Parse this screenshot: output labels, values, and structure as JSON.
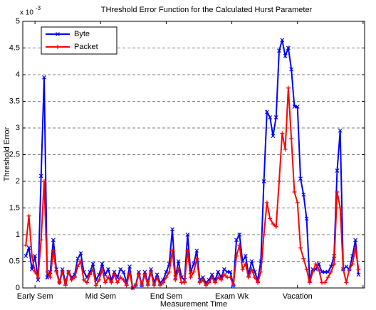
{
  "chart_data": {
    "type": "line",
    "title": "THreshold Error Function for the Calculated Hurst Parameter",
    "x_label": "Measurement Time",
    "y_label": "Threshold Error",
    "y_scale_base": "x 10",
    "y_scale_exponent": "-3",
    "x": [
      1,
      2,
      3,
      4,
      5,
      6,
      7,
      8,
      9,
      10,
      11,
      12,
      13,
      14,
      15,
      16,
      17,
      18,
      19,
      20,
      21,
      22,
      23,
      24,
      25,
      26,
      27,
      28,
      29,
      30,
      31,
      32,
      33,
      34,
      35,
      36,
      37,
      38,
      39,
      40,
      41,
      42,
      43,
      44,
      45,
      46,
      47,
      48,
      49,
      50,
      51,
      52,
      53,
      54,
      55,
      56,
      57,
      58,
      59,
      60,
      61,
      62,
      63,
      64,
      65,
      66,
      67,
      68,
      69,
      70,
      71,
      72,
      73,
      74,
      75,
      76,
      77,
      78,
      79,
      80,
      81,
      82,
      83,
      84,
      85,
      86,
      87,
      88,
      89,
      90,
      91,
      92,
      93,
      94,
      95,
      96,
      97,
      98,
      99,
      100,
      101,
      102,
      103,
      104,
      105,
      106,
      107,
      108,
      109,
      110
    ],
    "series": [
      {
        "name": "Byte",
        "color": "#0000ff",
        "marker": "x",
        "values": [
          0.6,
          0.75,
          0.35,
          0.6,
          0.15,
          2.1,
          3.95,
          0.2,
          0.3,
          0.9,
          0.35,
          0.1,
          0.35,
          0.1,
          0.3,
          0.2,
          0.25,
          0.55,
          0.65,
          0.3,
          0.2,
          0.3,
          0.45,
          0.15,
          0.25,
          0.45,
          0.25,
          0.35,
          0.15,
          0.3,
          0.2,
          0.35,
          0.3,
          0.1,
          0.4,
          0,
          0.05,
          0.3,
          0.05,
          0.3,
          0.1,
          0.35,
          0.1,
          0.25,
          0.1,
          0.15,
          0.3,
          0.45,
          1.1,
          0.2,
          0.5,
          0.2,
          0.15,
          1,
          0.3,
          0.45,
          0.7,
          0.15,
          0.2,
          0.1,
          0.15,
          0.25,
          0.15,
          0.3,
          0.2,
          0.35,
          0.3,
          0.3,
          0.05,
          0.9,
          1,
          0.5,
          0.6,
          0.25,
          0.5,
          0.3,
          0.15,
          0.5,
          2,
          3.3,
          3.2,
          2.85,
          3.2,
          4.45,
          4.65,
          4.35,
          4.5,
          4.1,
          3.4,
          3.4,
          2.05,
          1.75,
          1.3,
          0.15,
          0.35,
          0.35,
          0.45,
          0.3,
          0.3,
          0.3,
          0.4,
          0.6,
          2.2,
          2.95,
          0.35,
          0.4,
          0.35,
          0.6,
          0.9,
          0.25
        ]
      },
      {
        "name": "Packet",
        "color": "#ff0000",
        "marker": "+",
        "values": [
          0.8,
          1.35,
          0.6,
          0.3,
          0.2,
          0.9,
          2,
          0.3,
          0.2,
          0.7,
          0.3,
          0.1,
          0.3,
          0.05,
          0.3,
          0.15,
          0.2,
          0.4,
          0.5,
          0.15,
          0.1,
          0.25,
          0.35,
          0.05,
          0.15,
          0.35,
          0.1,
          0.2,
          0.1,
          0.25,
          0.1,
          0.2,
          0.15,
          0.05,
          0.3,
          0,
          0.05,
          0.25,
          0.05,
          0.25,
          0.05,
          0.3,
          0.05,
          0.2,
          0.05,
          0.1,
          0.2,
          0.3,
          0.7,
          0.15,
          0.35,
          0.1,
          0.1,
          0.7,
          0.2,
          0.3,
          0.55,
          0.1,
          0.15,
          0.05,
          0.1,
          0.2,
          0.1,
          0.2,
          0.15,
          0.25,
          0.2,
          0.2,
          0.05,
          0.6,
          0.8,
          0.35,
          0.45,
          0.2,
          0.35,
          0.2,
          0.1,
          0.3,
          1,
          1.6,
          1.3,
          1.2,
          1.15,
          2,
          2.9,
          2.6,
          3.75,
          2.8,
          1.8,
          1.6,
          0.75,
          0.55,
          0.35,
          0.1,
          0.3,
          0.45,
          0.35,
          0.1,
          0.1,
          0.2,
          0.3,
          0.45,
          1.8,
          1.5,
          0.35,
          0.1,
          0.35,
          0.45,
          0.75,
          0.35
        ]
      }
    ],
    "xlim": [
      0,
      112
    ],
    "xticks": [
      {
        "value": 4,
        "label": "Early Sem"
      },
      {
        "value": 25.5,
        "label": "Mid Sem"
      },
      {
        "value": 47,
        "label": "End Sem"
      },
      {
        "value": 68.5,
        "label": "Exam Wk"
      },
      {
        "value": 90,
        "label": "Vacation"
      },
      {
        "value": 111.5,
        "label": null
      }
    ],
    "ylim": [
      0,
      5
    ],
    "yticks": [
      0,
      0.5,
      1,
      1.5,
      2,
      2.5,
      3,
      3.5,
      4,
      4.5,
      5
    ],
    "grid": true,
    "legend": "upper-left"
  }
}
